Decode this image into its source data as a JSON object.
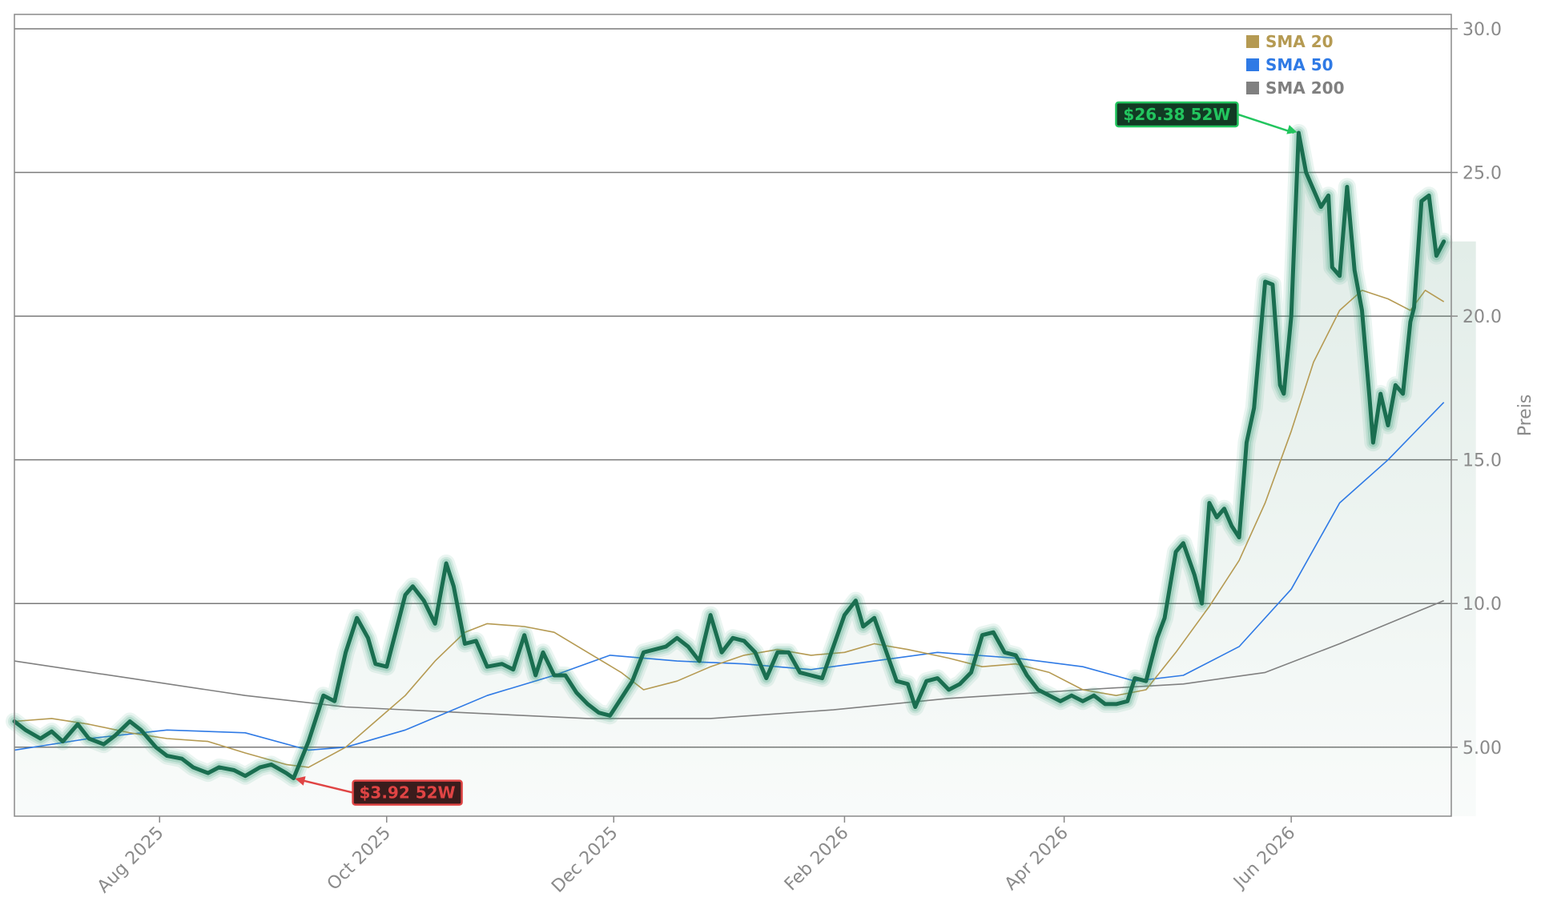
{
  "chart_data": {
    "type": "line",
    "title": "",
    "xlabel": "",
    "ylabel": "Preis",
    "ylim": [
      2.6,
      30.5
    ],
    "xlim": [
      "2025-06-23",
      "2026-07-14"
    ],
    "grid": "horizontal",
    "legend_placement": "top-right",
    "y_ticks": [
      "5.00",
      "10.0",
      "15.0",
      "20.0",
      "25.0",
      "30.0"
    ],
    "x_ticks": [
      {
        "date": "2025-08-01",
        "label": "Aug 2025"
      },
      {
        "date": "2025-10-01",
        "label": "Oct 2025"
      },
      {
        "date": "2025-12-01",
        "label": "Dec 2025"
      },
      {
        "date": "2026-02-01",
        "label": "Feb 2026"
      },
      {
        "date": "2026-04-01",
        "label": "Apr 2026"
      },
      {
        "date": "2026-06-01",
        "label": "Jun 2026"
      }
    ],
    "colors": {
      "price": "#1a6e50",
      "price_glow": "#2e9a72",
      "area": "#2e7d5b",
      "sma20": "#b59a52",
      "sma50": "#2f7ae5",
      "sma200": "#808080",
      "grid": "#7a7a7a",
      "high": "#22c55e",
      "low": "#e04444"
    },
    "series": [
      {
        "key": "price",
        "points": [
          [
            "2025-06-23",
            5.9
          ],
          [
            "2025-06-26",
            5.6
          ],
          [
            "2025-06-30",
            5.3
          ],
          [
            "2025-07-03",
            5.55
          ],
          [
            "2025-07-06",
            5.2
          ],
          [
            "2025-07-10",
            5.8
          ],
          [
            "2025-07-13",
            5.3
          ],
          [
            "2025-07-17",
            5.1
          ],
          [
            "2025-07-20",
            5.4
          ],
          [
            "2025-07-24",
            5.9
          ],
          [
            "2025-07-27",
            5.6
          ],
          [
            "2025-07-31",
            5.0
          ],
          [
            "2025-08-03",
            4.7
          ],
          [
            "2025-08-07",
            4.6
          ],
          [
            "2025-08-10",
            4.3
          ],
          [
            "2025-08-14",
            4.1
          ],
          [
            "2025-08-17",
            4.3
          ],
          [
            "2025-08-21",
            4.2
          ],
          [
            "2025-08-24",
            4.0
          ],
          [
            "2025-08-28",
            4.3
          ],
          [
            "2025-08-31",
            4.4
          ],
          [
            "2025-09-04",
            4.1
          ],
          [
            "2025-09-06",
            3.92
          ],
          [
            "2025-09-10",
            5.2
          ],
          [
            "2025-09-14",
            6.8
          ],
          [
            "2025-09-17",
            6.6
          ],
          [
            "2025-09-20",
            8.3
          ],
          [
            "2025-09-23",
            9.5
          ],
          [
            "2025-09-26",
            8.8
          ],
          [
            "2025-09-28",
            7.9
          ],
          [
            "2025-10-01",
            7.8
          ],
          [
            "2025-10-03",
            8.8
          ],
          [
            "2025-10-06",
            10.3
          ],
          [
            "2025-10-08",
            10.6
          ],
          [
            "2025-10-11",
            10.1
          ],
          [
            "2025-10-14",
            9.3
          ],
          [
            "2025-10-17",
            11.4
          ],
          [
            "2025-10-19",
            10.6
          ],
          [
            "2025-10-22",
            8.6
          ],
          [
            "2025-10-25",
            8.7
          ],
          [
            "2025-10-28",
            7.8
          ],
          [
            "2025-11-01",
            7.9
          ],
          [
            "2025-11-04",
            7.7
          ],
          [
            "2025-11-07",
            8.9
          ],
          [
            "2025-11-10",
            7.5
          ],
          [
            "2025-11-12",
            8.3
          ],
          [
            "2025-11-15",
            7.5
          ],
          [
            "2025-11-18",
            7.5
          ],
          [
            "2025-11-21",
            6.9
          ],
          [
            "2025-11-24",
            6.5
          ],
          [
            "2025-11-27",
            6.2
          ],
          [
            "2025-11-30",
            6.1
          ],
          [
            "2025-12-03",
            6.7
          ],
          [
            "2025-12-06",
            7.3
          ],
          [
            "2025-12-09",
            8.3
          ],
          [
            "2025-12-12",
            8.4
          ],
          [
            "2025-12-15",
            8.5
          ],
          [
            "2025-12-18",
            8.8
          ],
          [
            "2025-12-21",
            8.5
          ],
          [
            "2025-12-24",
            8.0
          ],
          [
            "2025-12-27",
            9.6
          ],
          [
            "2025-12-30",
            8.3
          ],
          [
            "2026-01-02",
            8.8
          ],
          [
            "2026-01-05",
            8.7
          ],
          [
            "2026-01-08",
            8.3
          ],
          [
            "2026-01-11",
            7.4
          ],
          [
            "2026-01-14",
            8.3
          ],
          [
            "2026-01-17",
            8.3
          ],
          [
            "2026-01-20",
            7.6
          ],
          [
            "2026-01-23",
            7.5
          ],
          [
            "2026-01-26",
            7.4
          ],
          [
            "2026-01-29",
            8.5
          ],
          [
            "2026-02-01",
            9.6
          ],
          [
            "2026-02-04",
            10.1
          ],
          [
            "2026-02-06",
            9.2
          ],
          [
            "2026-02-09",
            9.5
          ],
          [
            "2026-02-12",
            8.4
          ],
          [
            "2026-02-15",
            7.3
          ],
          [
            "2026-02-18",
            7.2
          ],
          [
            "2026-02-20",
            6.4
          ],
          [
            "2026-02-23",
            7.3
          ],
          [
            "2026-02-26",
            7.4
          ],
          [
            "2026-03-01",
            7.0
          ],
          [
            "2026-03-04",
            7.2
          ],
          [
            "2026-03-07",
            7.6
          ],
          [
            "2026-03-10",
            8.9
          ],
          [
            "2026-03-13",
            9.0
          ],
          [
            "2026-03-16",
            8.3
          ],
          [
            "2026-03-19",
            8.2
          ],
          [
            "2026-03-22",
            7.5
          ],
          [
            "2026-03-25",
            7.0
          ],
          [
            "2026-03-28",
            6.8
          ],
          [
            "2026-03-31",
            6.6
          ],
          [
            "2026-04-03",
            6.8
          ],
          [
            "2026-04-06",
            6.6
          ],
          [
            "2026-04-09",
            6.8
          ],
          [
            "2026-04-12",
            6.5
          ],
          [
            "2026-04-15",
            6.5
          ],
          [
            "2026-04-18",
            6.6
          ],
          [
            "2026-04-20",
            7.4
          ],
          [
            "2026-04-23",
            7.3
          ],
          [
            "2026-04-26",
            8.8
          ],
          [
            "2026-04-28",
            9.5
          ],
          [
            "2026-05-01",
            11.8
          ],
          [
            "2026-05-03",
            12.1
          ],
          [
            "2026-05-06",
            11.0
          ],
          [
            "2026-05-08",
            10.0
          ],
          [
            "2026-05-10",
            13.5
          ],
          [
            "2026-05-12",
            13.0
          ],
          [
            "2026-05-14",
            13.3
          ],
          [
            "2026-05-16",
            12.7
          ],
          [
            "2026-05-18",
            12.3
          ],
          [
            "2026-05-20",
            15.6
          ],
          [
            "2026-05-22",
            16.8
          ],
          [
            "2026-05-25",
            21.2
          ],
          [
            "2026-05-27",
            21.1
          ],
          [
            "2026-05-29",
            17.6
          ],
          [
            "2026-05-30",
            17.3
          ],
          [
            "2026-06-01",
            20.0
          ],
          [
            "2026-06-03",
            26.38
          ],
          [
            "2026-06-05",
            25.0
          ],
          [
            "2026-06-07",
            24.4
          ],
          [
            "2026-06-09",
            23.8
          ],
          [
            "2026-06-11",
            24.2
          ],
          [
            "2026-06-12",
            21.7
          ],
          [
            "2026-06-14",
            21.4
          ],
          [
            "2026-06-16",
            24.5
          ],
          [
            "2026-06-18",
            21.6
          ],
          [
            "2026-06-20",
            20.2
          ],
          [
            "2026-06-22",
            17.2
          ],
          [
            "2026-06-23",
            15.6
          ],
          [
            "2026-06-25",
            17.3
          ],
          [
            "2026-06-27",
            16.2
          ],
          [
            "2026-06-29",
            17.6
          ],
          [
            "2026-07-01",
            17.3
          ],
          [
            "2026-07-03",
            19.8
          ],
          [
            "2026-07-04",
            20.3
          ],
          [
            "2026-07-06",
            24.0
          ],
          [
            "2026-07-08",
            24.2
          ],
          [
            "2026-07-10",
            22.1
          ],
          [
            "2026-07-12",
            22.6
          ]
        ]
      },
      {
        "key": "sma20",
        "name": "SMA 20",
        "points": [
          [
            "2025-06-23",
            5.9
          ],
          [
            "2025-07-03",
            6.0
          ],
          [
            "2025-07-13",
            5.8
          ],
          [
            "2025-07-24",
            5.5
          ],
          [
            "2025-08-03",
            5.3
          ],
          [
            "2025-08-14",
            5.2
          ],
          [
            "2025-08-24",
            4.8
          ],
          [
            "2025-09-04",
            4.4
          ],
          [
            "2025-09-10",
            4.3
          ],
          [
            "2025-09-20",
            5.0
          ],
          [
            "2025-09-28",
            5.9
          ],
          [
            "2025-10-06",
            6.8
          ],
          [
            "2025-10-14",
            8.0
          ],
          [
            "2025-10-22",
            9.0
          ],
          [
            "2025-10-28",
            9.3
          ],
          [
            "2025-11-07",
            9.2
          ],
          [
            "2025-11-15",
            9.0
          ],
          [
            "2025-11-24",
            8.3
          ],
          [
            "2025-12-03",
            7.6
          ],
          [
            "2025-12-09",
            7.0
          ],
          [
            "2025-12-18",
            7.3
          ],
          [
            "2025-12-27",
            7.8
          ],
          [
            "2026-01-05",
            8.2
          ],
          [
            "2026-01-14",
            8.4
          ],
          [
            "2026-01-23",
            8.2
          ],
          [
            "2026-02-01",
            8.3
          ],
          [
            "2026-02-09",
            8.6
          ],
          [
            "2026-02-18",
            8.4
          ],
          [
            "2026-03-01",
            8.1
          ],
          [
            "2026-03-10",
            7.8
          ],
          [
            "2026-03-19",
            7.9
          ],
          [
            "2026-03-28",
            7.6
          ],
          [
            "2026-04-06",
            7.0
          ],
          [
            "2026-04-15",
            6.8
          ],
          [
            "2026-04-23",
            7.0
          ],
          [
            "2026-05-01",
            8.3
          ],
          [
            "2026-05-10",
            9.9
          ],
          [
            "2026-05-18",
            11.5
          ],
          [
            "2026-05-25",
            13.5
          ],
          [
            "2026-06-01",
            16.0
          ],
          [
            "2026-06-07",
            18.4
          ],
          [
            "2026-06-14",
            20.2
          ],
          [
            "2026-06-20",
            20.9
          ],
          [
            "2026-06-27",
            20.6
          ],
          [
            "2026-07-03",
            20.2
          ],
          [
            "2026-07-07",
            20.9
          ],
          [
            "2026-07-12",
            20.5
          ]
        ]
      },
      {
        "key": "sma50",
        "name": "SMA 50",
        "points": [
          [
            "2025-06-23",
            4.9
          ],
          [
            "2025-07-13",
            5.3
          ],
          [
            "2025-08-03",
            5.6
          ],
          [
            "2025-08-24",
            5.5
          ],
          [
            "2025-09-10",
            4.9
          ],
          [
            "2025-09-20",
            5.0
          ],
          [
            "2025-10-06",
            5.6
          ],
          [
            "2025-10-28",
            6.8
          ],
          [
            "2025-11-15",
            7.5
          ],
          [
            "2025-11-30",
            8.2
          ],
          [
            "2025-12-18",
            8.0
          ],
          [
            "2026-01-05",
            7.9
          ],
          [
            "2026-01-23",
            7.7
          ],
          [
            "2026-02-09",
            8.0
          ],
          [
            "2026-02-26",
            8.3
          ],
          [
            "2026-03-19",
            8.1
          ],
          [
            "2026-04-06",
            7.8
          ],
          [
            "2026-04-20",
            7.3
          ],
          [
            "2026-05-03",
            7.5
          ],
          [
            "2026-05-18",
            8.5
          ],
          [
            "2026-06-01",
            10.5
          ],
          [
            "2026-06-14",
            13.5
          ],
          [
            "2026-06-27",
            15.0
          ],
          [
            "2026-07-12",
            17.0
          ]
        ]
      },
      {
        "key": "sma200",
        "name": "SMA 200",
        "points": [
          [
            "2025-06-23",
            8.0
          ],
          [
            "2025-07-24",
            7.4
          ],
          [
            "2025-08-24",
            6.8
          ],
          [
            "2025-09-20",
            6.4
          ],
          [
            "2025-10-22",
            6.2
          ],
          [
            "2025-11-24",
            6.0
          ],
          [
            "2025-12-27",
            6.0
          ],
          [
            "2026-01-29",
            6.3
          ],
          [
            "2026-03-01",
            6.7
          ],
          [
            "2026-04-06",
            7.0
          ],
          [
            "2026-05-03",
            7.2
          ],
          [
            "2026-05-25",
            7.6
          ],
          [
            "2026-06-14",
            8.6
          ],
          [
            "2026-07-12",
            10.1
          ]
        ]
      }
    ],
    "annotations": [
      {
        "kind": "high",
        "label": "$26.38 52W",
        "date": "2026-06-03",
        "value": 26.38
      },
      {
        "kind": "low",
        "label": "$3.92 52W",
        "date": "2025-09-06",
        "value": 3.92
      }
    ]
  }
}
